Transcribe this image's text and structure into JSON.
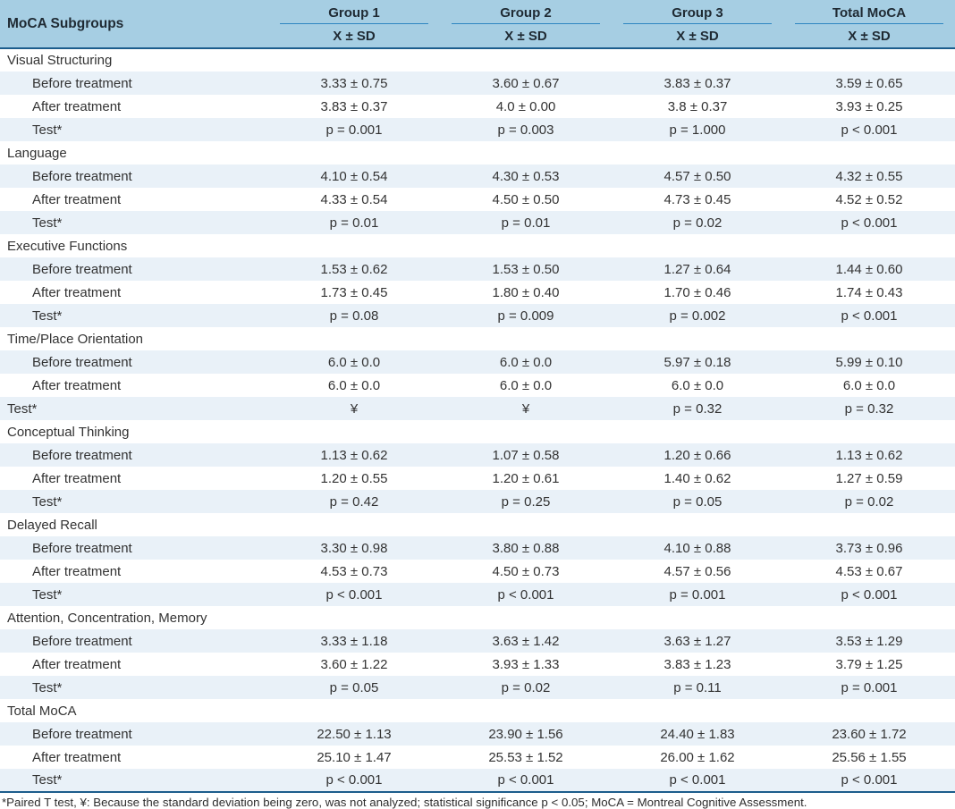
{
  "colors": {
    "header_bg": "#a6cee3",
    "stripe_bg": "#e9f1f8",
    "dark_border": "#1c5d8c",
    "group_underline": "#2e86c1",
    "text": "#333333"
  },
  "table": {
    "corner_header": "MoCA Subgroups",
    "group_headers": [
      "Group 1",
      "Group 2",
      "Group 3",
      "Total MoCA"
    ],
    "subheader": "X ± SD",
    "sections": [
      {
        "name": "Visual Structuring",
        "rows": [
          {
            "label": "Before treatment",
            "indent": true,
            "values": [
              "3.33 ± 0.75",
              "3.60 ± 0.67",
              "3.83 ± 0.37",
              "3.59 ± 0.65"
            ]
          },
          {
            "label": "After treatment",
            "indent": true,
            "values": [
              "3.83 ± 0.37",
              "4.0 ± 0.00",
              "3.8 ± 0.37",
              "3.93 ± 0.25"
            ]
          },
          {
            "label": "Test*",
            "indent": true,
            "values": [
              "p =  0.001",
              "p =  0.003",
              "p =  1.000",
              "p < 0.001"
            ]
          }
        ]
      },
      {
        "name": "Language",
        "rows": [
          {
            "label": "Before treatment",
            "indent": true,
            "values": [
              "4.10 ± 0.54",
              "4.30 ± 0.53",
              "4.57 ± 0.50",
              "4.32 ± 0.55"
            ]
          },
          {
            "label": "After treatment",
            "indent": true,
            "values": [
              "4.33 ± 0.54",
              "4.50 ± 0.50",
              "4.73 ± 0.45",
              "4.52 ± 0.52"
            ]
          },
          {
            "label": "Test*",
            "indent": true,
            "values": [
              "p =  0.01",
              "p =  0.01",
              "p =  0.02",
              "p < 0.001"
            ]
          }
        ]
      },
      {
        "name": "Executive Functions",
        "rows": [
          {
            "label": "Before treatment",
            "indent": true,
            "values": [
              "1.53 ± 0.62",
              "1.53 ± 0.50",
              "1.27 ± 0.64",
              "1.44 ± 0.60"
            ]
          },
          {
            "label": "After treatment",
            "indent": true,
            "values": [
              "1.73 ± 0.45",
              "1.80 ± 0.40",
              "1.70 ± 0.46",
              "1.74 ± 0.43"
            ]
          },
          {
            "label": "Test*",
            "indent": true,
            "values": [
              "p =  0.08",
              "p =  0.009",
              "p =  0.002",
              "p < 0.001"
            ]
          }
        ]
      },
      {
        "name": "Time/Place Orientation",
        "rows": [
          {
            "label": "Before treatment",
            "indent": true,
            "values": [
              "6.0 ± 0.0",
              "6.0 ± 0.0",
              "5.97 ± 0.18",
              "5.99 ± 0.10"
            ]
          },
          {
            "label": "After treatment",
            "indent": true,
            "values": [
              "6.0 ± 0.0",
              "6.0 ± 0.0",
              "6.0 ± 0.0",
              "6.0 ± 0.0"
            ]
          },
          {
            "label": "Test*",
            "indent": false,
            "values": [
              "¥",
              "¥",
              "p =  0.32",
              "p =  0.32"
            ]
          }
        ]
      },
      {
        "name": "Conceptual Thinking",
        "rows": [
          {
            "label": "Before treatment",
            "indent": true,
            "values": [
              "1.13 ± 0.62",
              "1.07 ± 0.58",
              "1.20 ± 0.66",
              "1.13 ± 0.62"
            ]
          },
          {
            "label": "After treatment",
            "indent": true,
            "values": [
              "1.20 ± 0.55",
              "1.20 ± 0.61",
              "1.40 ± 0.62",
              "1.27 ± 0.59"
            ]
          },
          {
            "label": "Test*",
            "indent": true,
            "values": [
              "p =  0.42",
              "p =  0.25",
              "p =  0.05",
              "p =  0.02"
            ]
          }
        ]
      },
      {
        "name": "Delayed Recall",
        "rows": [
          {
            "label": "Before treatment",
            "indent": true,
            "values": [
              "3.30 ± 0.98",
              "3.80 ± 0.88",
              "4.10 ± 0.88",
              "3.73 ± 0.96"
            ]
          },
          {
            "label": "After treatment",
            "indent": true,
            "values": [
              "4.53 ± 0.73",
              "4.50 ± 0.73",
              "4.57 ± 0.56",
              "4.53 ± 0.67"
            ]
          },
          {
            "label": "Test*",
            "indent": true,
            "values": [
              "p < 0.001",
              "p < 0.001",
              "p =  0.001",
              "p < 0.001"
            ]
          }
        ]
      },
      {
        "name": "Attention, Concentration, Memory",
        "rows": [
          {
            "label": "Before treatment",
            "indent": true,
            "values": [
              "3.33 ± 1.18",
              "3.63 ± 1.42",
              "3.63 ± 1.27",
              "3.53 ± 1.29"
            ]
          },
          {
            "label": "After treatment",
            "indent": true,
            "values": [
              "3.60 ± 1.22",
              "3.93 ± 1.33",
              "3.83 ± 1.23",
              "3.79 ± 1.25"
            ]
          },
          {
            "label": "Test*",
            "indent": true,
            "values": [
              "p =  0.05",
              "p =  0.02",
              "p =  0.11",
              "p =  0.001"
            ]
          }
        ]
      },
      {
        "name": "Total MoCA",
        "rows": [
          {
            "label": "Before treatment",
            "indent": true,
            "values": [
              "22.50 ± 1.13",
              "23.90 ± 1.56",
              "24.40 ± 1.83",
              "23.60 ± 1.72"
            ]
          },
          {
            "label": "After treatment",
            "indent": true,
            "values": [
              "25.10 ± 1.47",
              "25.53 ± 1.52",
              "26.00 ± 1.62",
              "25.56 ± 1.55"
            ]
          },
          {
            "label": "Test*",
            "indent": true,
            "values": [
              "p < 0.001",
              "p < 0.001",
              "p < 0.001",
              "p < 0.001"
            ]
          }
        ]
      }
    ],
    "footnote": "*Paired T test, ¥: Because the standard deviation being zero, was not analyzed; statistical significance p < 0.05; MoCA = Montreal Cognitive Assessment."
  }
}
